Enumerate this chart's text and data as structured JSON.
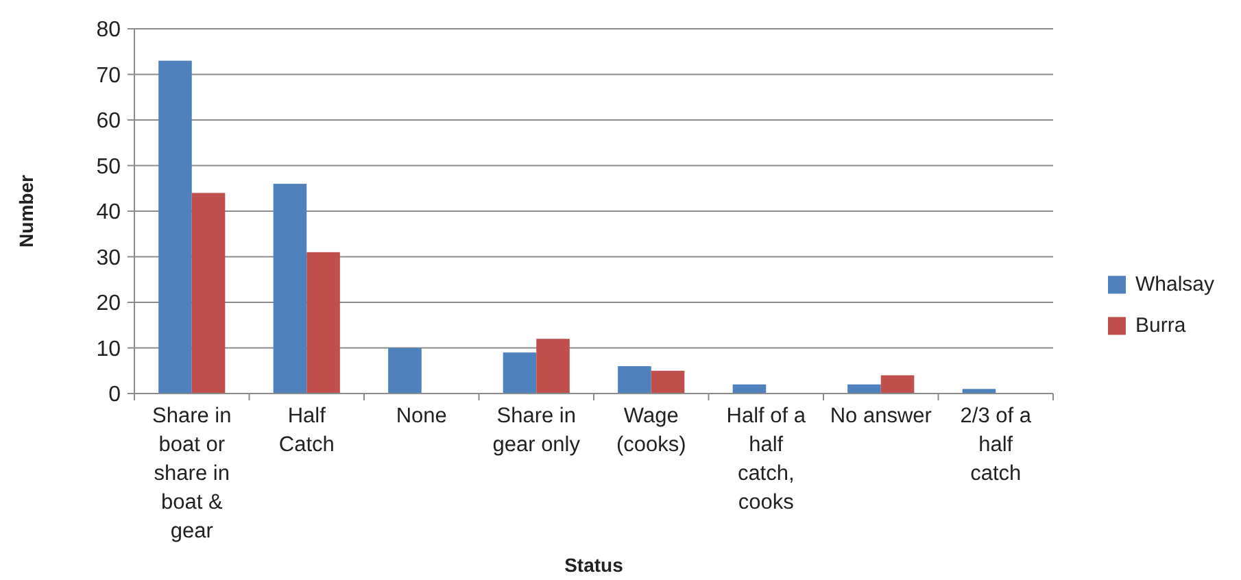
{
  "chart_data": {
    "type": "bar",
    "xlabel": "Status",
    "ylabel": "Number",
    "categories": [
      "Share in boat or share in boat & gear",
      "Half Catch",
      "None",
      "Share in gear only",
      "Wage (cooks)",
      "Half of a half catch, cooks",
      "No answer",
      "2/3 of a half catch"
    ],
    "series": [
      {
        "name": "Whalsay",
        "color": "#4f81bd",
        "values": [
          73,
          46,
          10,
          9,
          6,
          2,
          2,
          1
        ]
      },
      {
        "name": "Burra",
        "color": "#c0504d",
        "values": [
          44,
          31,
          0,
          12,
          5,
          0,
          4,
          0
        ]
      }
    ],
    "ylim": [
      0,
      80
    ],
    "yticks": [
      0,
      10,
      20,
      30,
      40,
      50,
      60,
      70,
      80
    ],
    "grid": "y",
    "legend": "right"
  }
}
